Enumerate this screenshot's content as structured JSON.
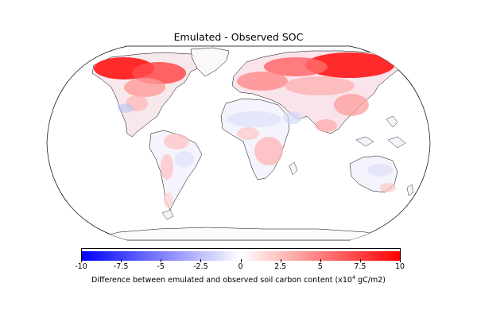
{
  "map": {
    "title": "Emulated - Observed SOC",
    "projection": "robinson",
    "ocean_color": "#ffffff",
    "land_base_color": "#f6f4fc",
    "coastline_color": "#000000"
  },
  "colorbar": {
    "cmap": "bwr",
    "min": -10,
    "max": 10,
    "colors": {
      "low": "#0000ff",
      "mid": "#ffffff",
      "high": "#ff0000"
    },
    "ticks": [
      "-10",
      "-7.5",
      "-5",
      "-2.5",
      "0",
      "2.5",
      "5",
      "7.5",
      "10"
    ],
    "label_main": "Difference between emulated and observed soil carbon content (x10",
    "label_sup": "4",
    "label_tail": " gC/m2)"
  }
}
